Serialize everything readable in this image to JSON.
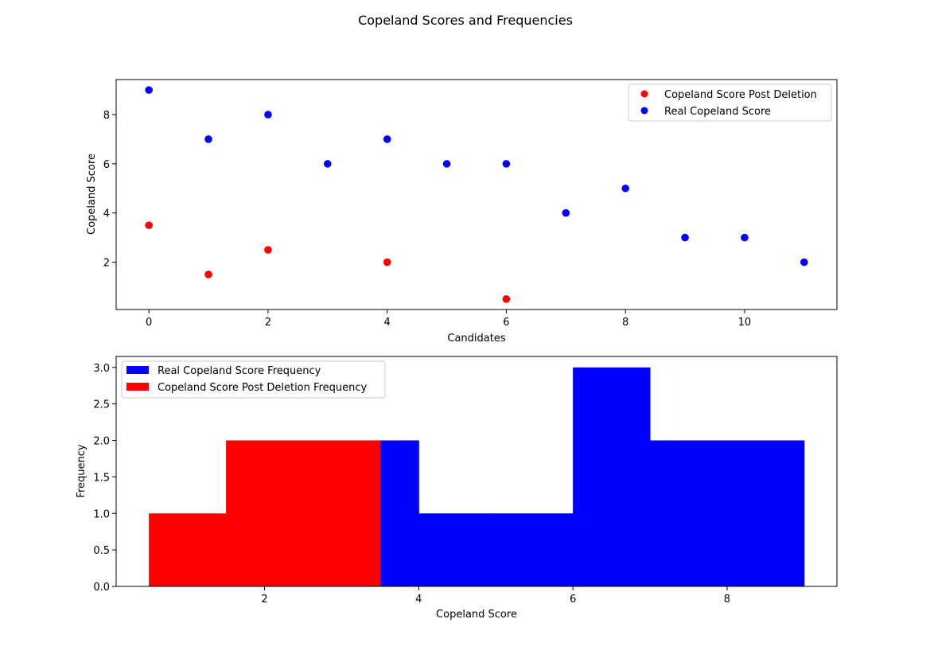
{
  "figure": {
    "suptitle": "Copeland Scores and Frequencies"
  },
  "colors": {
    "red": "#ff0000",
    "blue": "#0000ff"
  },
  "chart_data": [
    {
      "type": "scatter",
      "title": "",
      "xlabel": "Candidates",
      "ylabel": "Copeland Score",
      "xlim": [
        -0.55,
        11.55
      ],
      "ylim": [
        0.075,
        9.425
      ],
      "xticks": [
        0,
        2,
        4,
        6,
        8,
        10
      ],
      "yticks": [
        2,
        4,
        6,
        8
      ],
      "grid": false,
      "legend_position": "upper right",
      "series": [
        {
          "name": "Copeland Score Post Deletion",
          "color": "#ff0000",
          "marker": "circle",
          "points": [
            [
              0,
              3.5
            ],
            [
              1,
              1.5
            ],
            [
              2,
              2.5
            ],
            [
              4,
              2
            ],
            [
              6,
              0.5
            ]
          ]
        },
        {
          "name": "Real Copeland Score",
          "color": "#0000ff",
          "marker": "circle",
          "points": [
            [
              0,
              9
            ],
            [
              1,
              7
            ],
            [
              2,
              8
            ],
            [
              3,
              6
            ],
            [
              4,
              7
            ],
            [
              5,
              6
            ],
            [
              6,
              6
            ],
            [
              7,
              4
            ],
            [
              8,
              5
            ],
            [
              9,
              3
            ],
            [
              10,
              3
            ],
            [
              11,
              2
            ]
          ]
        }
      ]
    },
    {
      "type": "bar",
      "subtype": "histogram",
      "title": "",
      "xlabel": "Copeland Score",
      "ylabel": "Frequency",
      "xlim": [
        0.075,
        9.425
      ],
      "ylim": [
        0,
        3.15
      ],
      "xticks": [
        2,
        4,
        6,
        8
      ],
      "yticks": [
        0.0,
        0.5,
        1.0,
        1.5,
        2.0,
        2.5,
        3.0
      ],
      "grid": false,
      "legend_position": "upper left",
      "series": [
        {
          "name": "Real Copeland Score Frequency",
          "color": "#0000ff",
          "bins": [
            {
              "x0": 2,
              "x1": 3,
              "count": 1
            },
            {
              "x0": 3,
              "x1": 4,
              "count": 2
            },
            {
              "x0": 4,
              "x1": 5,
              "count": 1
            },
            {
              "x0": 5,
              "x1": 6,
              "count": 1
            },
            {
              "x0": 6,
              "x1": 7,
              "count": 3
            },
            {
              "x0": 7,
              "x1": 8,
              "count": 2
            },
            {
              "x0": 8,
              "x1": 9,
              "count": 2
            }
          ]
        },
        {
          "name": "Copeland Score Post Deletion Frequency",
          "color": "#ff0000",
          "bins": [
            {
              "x0": 0.5,
              "x1": 1.5,
              "count": 1
            },
            {
              "x0": 1.5,
              "x1": 2.5,
              "count": 2
            },
            {
              "x0": 2.5,
              "x1": 3.5,
              "count": 2
            }
          ]
        }
      ]
    }
  ]
}
